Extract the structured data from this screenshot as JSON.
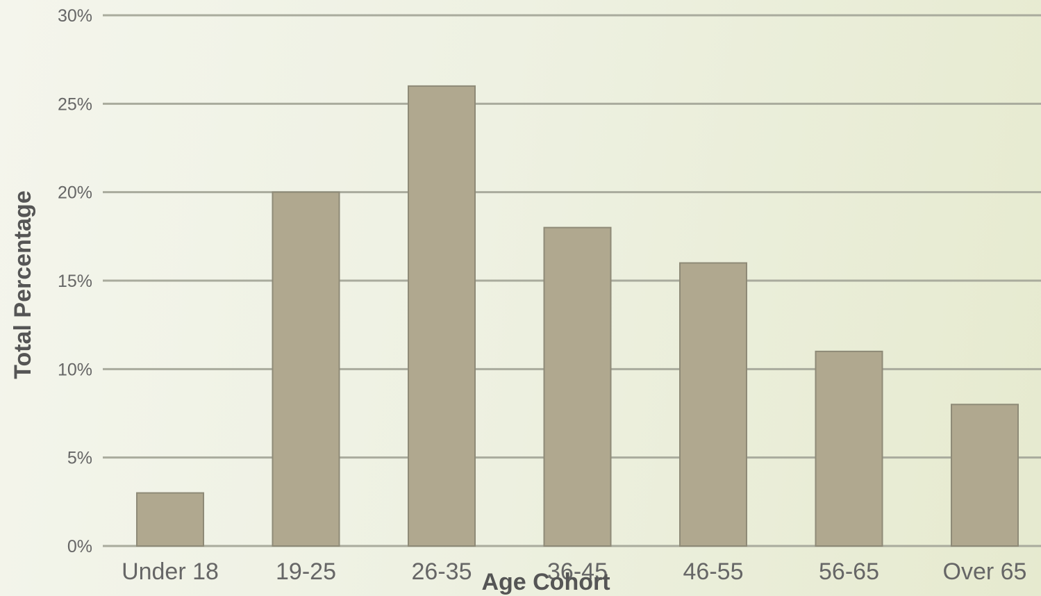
{
  "chart_data": {
    "type": "bar",
    "title": "",
    "xlabel": "Age Cohort",
    "ylabel": "Total Percentage",
    "categories": [
      "Under 18",
      "19-25",
      "26-35",
      "36-45",
      "46-55",
      "56-65",
      "Over 65"
    ],
    "values": [
      3,
      20,
      26,
      18,
      16,
      11,
      8
    ],
    "ylim": [
      0,
      30
    ],
    "yticks": [
      {
        "value": 0,
        "label": "0%"
      },
      {
        "value": 5,
        "label": "5%"
      },
      {
        "value": 10,
        "label": "10%"
      },
      {
        "value": 15,
        "label": "15%"
      },
      {
        "value": 20,
        "label": "20%"
      },
      {
        "value": 25,
        "label": "25%"
      },
      {
        "value": 30,
        "label": "30%"
      }
    ],
    "grid": true,
    "legend": "none",
    "colors": {
      "bar": "#b0a88f",
      "gridline": "#a9ab9d",
      "text": "#666666"
    }
  }
}
